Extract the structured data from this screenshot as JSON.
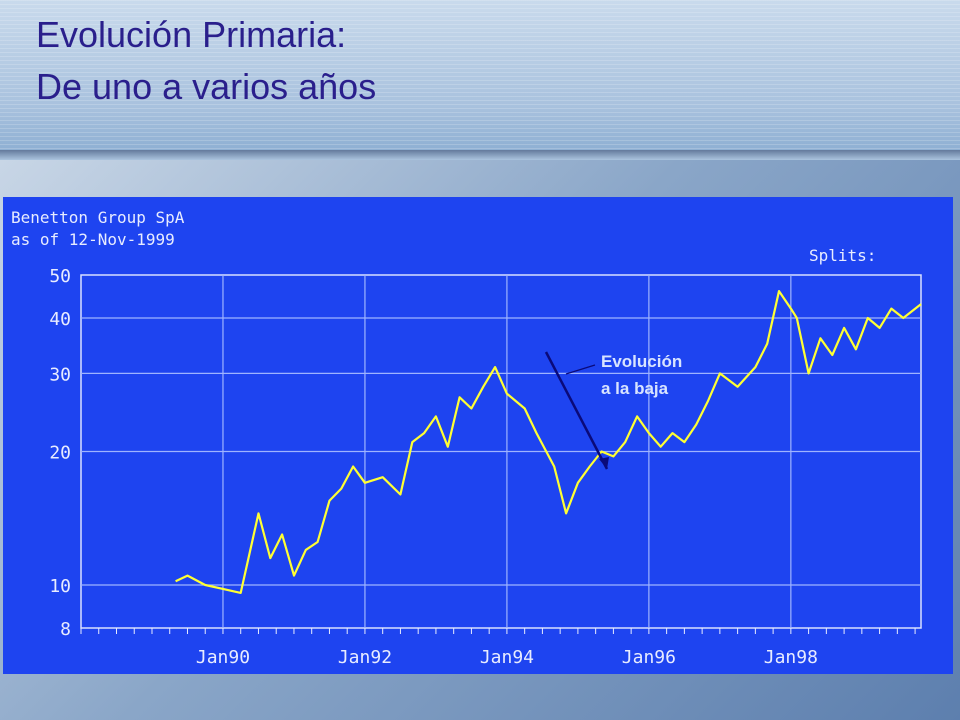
{
  "slide": {
    "title_line1": "Evolución Primaria:",
    "title_line2": "De uno a varios años"
  },
  "chart_data": {
    "type": "line",
    "title": "Benetton Group SpA",
    "subtitle": "as of 12-Nov-1999",
    "splits_label": "Splits:",
    "y_scale": "log",
    "ylim": [
      8,
      50
    ],
    "xlim": [
      "1988-01",
      "1999-11"
    ],
    "y_ticks": [
      8,
      10,
      20,
      30,
      40,
      50
    ],
    "x_ticks": [
      "Jan90",
      "Jan92",
      "Jan94",
      "Jan96",
      "Jan98"
    ],
    "grid": true,
    "colors": {
      "background": "#1e44f0",
      "line": "#ffff33",
      "grid": "#9fb4ff",
      "text": "#e8ecff",
      "arrow": "#0a0a7a"
    },
    "series": [
      {
        "x": [
          "1989-05",
          "1989-07",
          "1989-10",
          "1990-01",
          "1990-04",
          "1990-07",
          "1990-09",
          "1990-11",
          "1991-01",
          "1991-03",
          "1991-05",
          "1991-07",
          "1991-09",
          "1991-11",
          "1992-01",
          "1992-04",
          "1992-07",
          "1992-09",
          "1992-11",
          "1993-01",
          "1993-03",
          "1993-05",
          "1993-07",
          "1993-09",
          "1993-11",
          "1994-01",
          "1994-04",
          "1994-06",
          "1994-09",
          "1994-11",
          "1995-01",
          "1995-03",
          "1995-05",
          "1995-07",
          "1995-09",
          "1995-11",
          "1996-01",
          "1996-03",
          "1996-05",
          "1996-07",
          "1996-09",
          "1996-11",
          "1997-01",
          "1997-04",
          "1997-07",
          "1997-09",
          "1997-11",
          "1998-01",
          "1998-02",
          "1998-04",
          "1998-06",
          "1998-08",
          "1998-10",
          "1998-12",
          "1999-02",
          "1999-04",
          "1999-06",
          "1999-08",
          "1999-11"
        ],
        "values": [
          10.2,
          10.5,
          10.0,
          9.8,
          9.6,
          14.5,
          11.5,
          13.0,
          10.5,
          12.0,
          12.5,
          15.5,
          16.5,
          18.5,
          17.0,
          17.5,
          16.0,
          21.0,
          22.0,
          24.0,
          20.5,
          26.5,
          25.0,
          28.0,
          31.0,
          27.0,
          25.0,
          22.0,
          18.5,
          14.5,
          17.0,
          18.5,
          20.0,
          19.5,
          21.0,
          24.0,
          22.0,
          20.5,
          22.0,
          21.0,
          23.0,
          26.0,
          30.0,
          28.0,
          31.0,
          35.0,
          46.0,
          42.0,
          40.0,
          30.0,
          36.0,
          33.0,
          38.0,
          34.0,
          40.0,
          38.0,
          42.0,
          40.0,
          43.0
        ]
      }
    ],
    "annotation": {
      "text_line1": "Evolución",
      "text_line2": "a la baja"
    }
  }
}
